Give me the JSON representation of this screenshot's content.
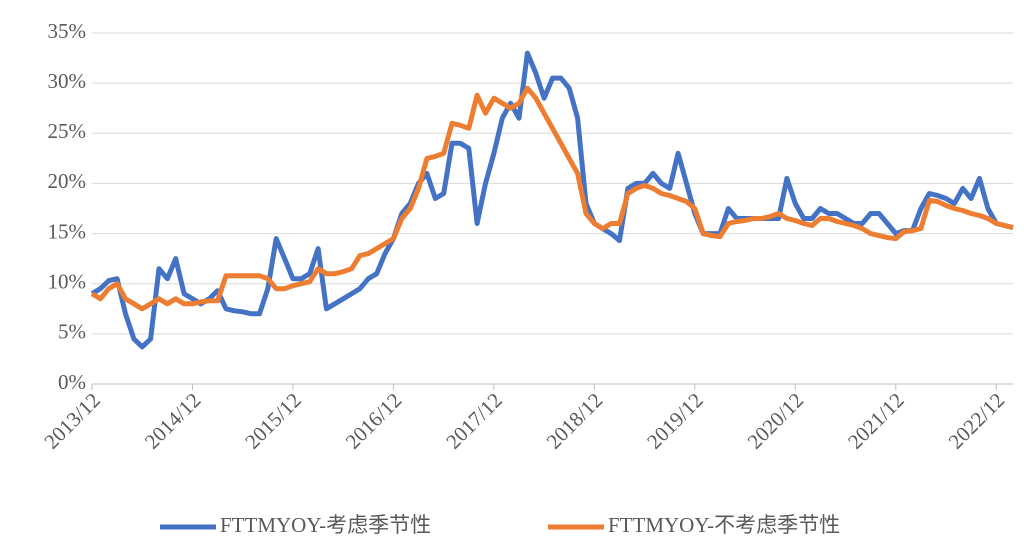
{
  "chart_data": {
    "type": "line",
    "categories": [
      "2013/12",
      null,
      null,
      null,
      null,
      null,
      null,
      null,
      null,
      null,
      null,
      null,
      "2014/12",
      null,
      null,
      null,
      null,
      null,
      null,
      null,
      null,
      null,
      null,
      null,
      "2015/12",
      null,
      null,
      null,
      null,
      null,
      null,
      null,
      null,
      null,
      null,
      null,
      "2016/12",
      null,
      null,
      null,
      null,
      null,
      null,
      null,
      null,
      null,
      null,
      null,
      "2017/12",
      null,
      null,
      null,
      null,
      null,
      null,
      null,
      null,
      null,
      null,
      null,
      "2018/12",
      null,
      null,
      null,
      null,
      null,
      null,
      null,
      null,
      null,
      null,
      null,
      "2019/12",
      null,
      null,
      null,
      null,
      null,
      null,
      null,
      null,
      null,
      null,
      null,
      "2020/12",
      null,
      null,
      null,
      null,
      null,
      null,
      null,
      null,
      null,
      null,
      null,
      "2021/12",
      null,
      null,
      null,
      null,
      null,
      null,
      null,
      null,
      null,
      null,
      null,
      "2022/12",
      null,
      null
    ],
    "series": [
      {
        "name": "FTTMYOY-考虑季节性",
        "color": "#4472c4",
        "values": [
          9,
          9.5,
          10.3,
          10.5,
          7,
          4.5,
          3.7,
          4.5,
          11.5,
          10.5,
          12.5,
          9,
          8.5,
          8,
          8.5,
          9.3,
          7.5,
          7.3,
          7.2,
          7,
          7,
          9.5,
          14.5,
          12.5,
          10.5,
          10.5,
          11,
          13.5,
          7.5,
          8,
          8.5,
          9,
          9.5,
          10.5,
          11,
          13,
          14.5,
          17,
          18,
          20,
          21,
          18.5,
          19,
          24,
          24,
          23.5,
          16,
          20,
          23,
          26.5,
          28,
          26.5,
          33,
          31,
          28.5,
          30.5,
          30.5,
          29.5,
          26.5,
          18,
          16,
          15.5,
          15,
          14.3,
          19.5,
          20,
          20,
          21,
          20,
          19.5,
          23,
          20,
          17,
          15,
          15,
          15,
          17.5,
          16.5,
          16.5,
          16.5,
          16.5,
          16.5,
          16.5,
          20.5,
          18,
          16.5,
          16.5,
          17.5,
          17,
          17,
          16.5,
          16,
          16,
          17,
          17,
          16,
          15,
          15.3,
          15.3,
          17.5,
          19,
          18.8,
          18.5,
          18,
          19.5,
          18.5,
          20.5,
          17.5,
          16,
          15.8,
          15.6
        ]
      },
      {
        "name": "FTTMYOY-不考虑季节性",
        "color": "#ed7d31",
        "values": [
          9,
          8.5,
          9.5,
          10,
          8.5,
          8,
          7.5,
          8,
          8.5,
          8,
          8.5,
          8,
          8,
          8.2,
          8.3,
          8.3,
          10.8,
          10.8,
          10.8,
          10.8,
          10.8,
          10.5,
          9.5,
          9.5,
          9.8,
          10,
          10.2,
          11.5,
          11,
          11,
          11.2,
          11.5,
          12.8,
          13,
          13.5,
          14,
          14.5,
          16.5,
          17.5,
          19.5,
          22.5,
          22.7,
          23,
          26,
          25.8,
          25.5,
          28.8,
          27,
          28.5,
          28,
          27.5,
          28,
          29.5,
          28.5,
          27,
          25.5,
          24,
          22.5,
          21,
          17,
          16,
          15.5,
          16,
          16,
          19,
          19.5,
          19.8,
          19.5,
          19,
          18.8,
          18.5,
          18.2,
          17.5,
          15,
          14.8,
          14.7,
          16,
          16.2,
          16.3,
          16.5,
          16.5,
          16.7,
          17,
          16.5,
          16.3,
          16,
          15.8,
          16.5,
          16.5,
          16.2,
          16,
          15.8,
          15.5,
          15,
          14.8,
          14.6,
          14.5,
          15.2,
          15.3,
          15.5,
          18.3,
          18.2,
          17.8,
          17.5,
          17.3,
          17,
          16.8,
          16.5,
          16,
          15.8,
          15.6
        ]
      }
    ],
    "ylim": [
      0,
      35
    ],
    "yticks": [
      {
        "value": 0,
        "label": "0%"
      },
      {
        "value": 5,
        "label": "5%"
      },
      {
        "value": 10,
        "label": "10%"
      },
      {
        "value": 15,
        "label": "15%"
      },
      {
        "value": 20,
        "label": "20%"
      },
      {
        "value": 25,
        "label": "25%"
      },
      {
        "value": 30,
        "label": "30%"
      },
      {
        "value": 35,
        "label": "35%"
      }
    ],
    "grid": true,
    "legend": "bottom"
  }
}
